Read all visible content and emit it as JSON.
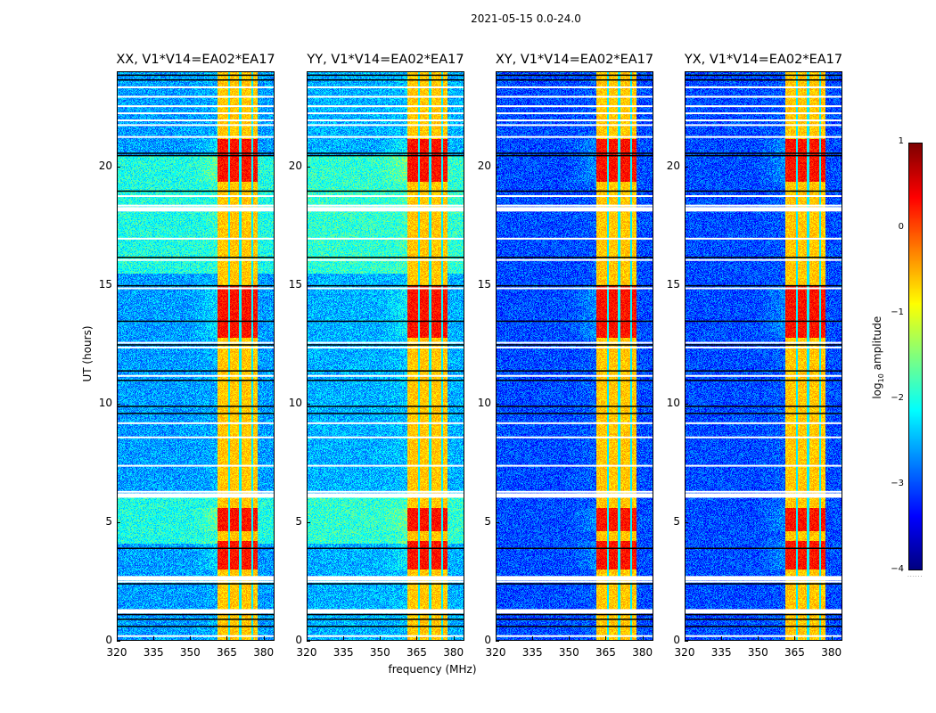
{
  "chart_data": {
    "type": "heatmap",
    "title": "2021-05-15 0.0-24.0",
    "xlabel": "frequency (MHz)",
    "ylabel": "UT (hours)",
    "xlim": [
      320,
      384.5
    ],
    "ylim": [
      0,
      24
    ],
    "x_ticks": [
      "320",
      "335",
      "350",
      "365",
      "380"
    ],
    "x_tick_values": [
      320,
      335,
      350,
      365,
      380
    ],
    "y_ticks": [
      "0",
      "5",
      "10",
      "15",
      "20"
    ],
    "y_tick_values": [
      0,
      5,
      10,
      15,
      20
    ],
    "colorbar": {
      "label_prefix": "log",
      "label_sub": "10",
      "label_suffix": " amplitude",
      "colormap": "jet",
      "range": [
        -4,
        1
      ],
      "ticks": [
        "1",
        "0",
        "−1",
        "−2",
        "−3",
        "−4"
      ],
      "tick_values": [
        1,
        0,
        -1,
        -2,
        -3,
        -4
      ]
    },
    "panels": [
      {
        "title": "XX, V1*V14=EA02*EA17",
        "pol": "XX",
        "background_log_amp": -2.6,
        "quiet_bright_hours": [
          [
            4.1,
            6.2
          ],
          [
            15.5,
            20.5
          ]
        ]
      },
      {
        "title": "YY, V1*V14=EA02*EA17",
        "pol": "YY",
        "background_log_amp": -2.5,
        "quiet_bright_hours": [
          [
            4.1,
            6.2
          ],
          [
            15.5,
            20.5
          ]
        ]
      },
      {
        "title": "XY, V1*V14=EA02*EA17",
        "pol": "XY",
        "background_log_amp": -3.0,
        "quiet_bright_hours": []
      },
      {
        "title": "YX, V1*V14=EA02*EA17",
        "pol": "YX",
        "background_log_amp": -3.0,
        "quiet_bright_hours": []
      }
    ],
    "rfi_band_mhz": [
      361,
      377.5
    ],
    "rfi_subband_gaps_mhz": [
      366,
      370.5,
      375.5
    ],
    "rfi_band_log_amp": -0.6,
    "strong_rfi_hours": [
      [
        3.0,
        4.2
      ],
      [
        4.6,
        5.6
      ],
      [
        12.8,
        15.0
      ],
      [
        19.4,
        21.2
      ]
    ],
    "flagged_rows_hours": [
      0.2,
      1.3,
      2.5,
      2.7,
      6.2,
      6.3,
      7.4,
      8.6,
      9.2,
      11.2,
      12.4,
      12.6,
      14.9,
      16.1,
      17.0,
      18.3,
      18.4,
      18.8,
      21.3,
      21.8,
      22.0,
      22.3,
      22.6,
      23.0,
      23.4
    ],
    "black_rows_hours": [
      0.6,
      0.9,
      1.1,
      2.4,
      3.9,
      9.6,
      9.9,
      11.0,
      11.4,
      12.5,
      13.5,
      15.0,
      16.2,
      19.0,
      20.5,
      20.6,
      23.7,
      23.9
    ]
  }
}
